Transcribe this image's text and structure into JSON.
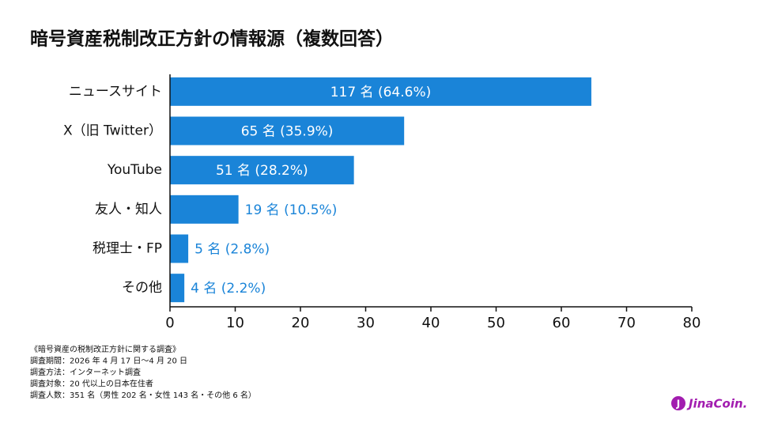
{
  "chart_data": {
    "type": "barh",
    "title": "暗号資産税制改正方針の情報源（複数回答）",
    "categories": [
      "ニュースサイト",
      "X（旧 Twitter）",
      "YouTube",
      "友人・知人",
      "税理士・FP",
      "その他"
    ],
    "values": [
      64.6,
      35.9,
      28.2,
      10.5,
      2.8,
      2.2
    ],
    "value_labels": [
      "117 名 (64.6%)",
      "65 名 (35.9%)",
      "51 名 (28.2%)",
      "19 名 (10.5%)",
      "5 名 (2.8%)",
      "4 名 (2.2%)"
    ],
    "color": "#1a84d8",
    "xlim": [
      0,
      80
    ],
    "xticks": [
      0,
      10,
      20,
      30,
      40,
      50,
      60,
      70,
      80
    ],
    "grid": false
  },
  "notes": [
    "《暗号資産の税制改正方針に関する調査》",
    "調査期間：2026 年 4 月 17 日〜4 月 20 日",
    "調査方法：インターネット調査",
    "調査対象：20 代以上の日本在住者",
    "調査人数：351 名（男性 202 名・女性 143 名・その他 6 名）"
  ],
  "logo": "JinaCoin."
}
